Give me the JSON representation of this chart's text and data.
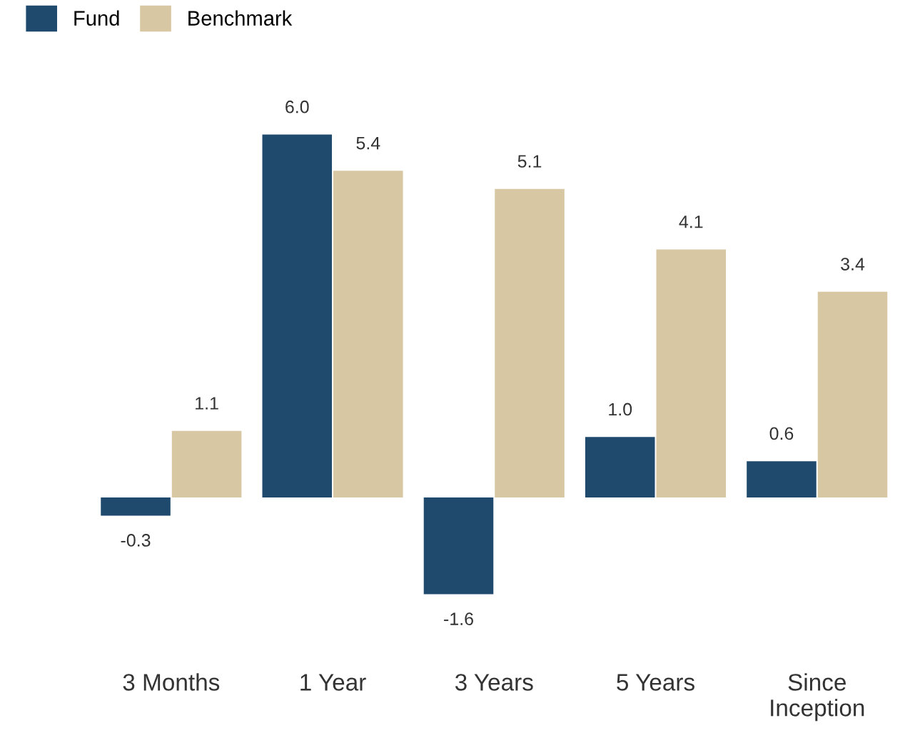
{
  "chart_data": {
    "type": "bar",
    "categories": [
      "3 Months",
      "1 Year",
      "3 Years",
      "5 Years",
      "Since\nInception"
    ],
    "series": [
      {
        "name": "Fund",
        "color": "#1f4a6e",
        "values": [
          -0.3,
          6.0,
          -1.6,
          1.0,
          0.6
        ],
        "value_labels": [
          "-0.3",
          "6.0",
          "-1.6",
          "1.0",
          "0.6"
        ]
      },
      {
        "name": "Benchmark",
        "color": "#d8c7a3",
        "values": [
          1.1,
          5.4,
          5.1,
          4.1,
          3.4
        ],
        "value_labels": [
          "1.1",
          "5.4",
          "5.1",
          "4.1",
          "3.4"
        ]
      }
    ],
    "legend": "top left",
    "grid": false
  }
}
